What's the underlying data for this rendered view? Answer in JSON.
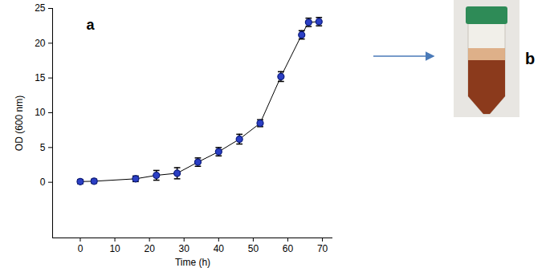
{
  "chart_data": {
    "type": "line",
    "x": [
      0,
      4,
      16,
      22,
      28,
      34,
      40,
      46,
      52,
      58,
      64,
      66,
      69
    ],
    "values": [
      0.1,
      0.15,
      0.5,
      1.0,
      1.3,
      2.9,
      4.4,
      6.2,
      8.5,
      15.2,
      21.2,
      23.0,
      23.1
    ],
    "errors": [
      0.3,
      0.3,
      0.4,
      0.7,
      0.8,
      0.6,
      0.6,
      0.7,
      0.5,
      0.7,
      0.6,
      0.6,
      0.6
    ],
    "color": "#2b3fc4",
    "marker": "circle",
    "xlabel": "Time (h)",
    "ylabel": "OD (600 nm)",
    "xlim": [
      -8,
      73
    ],
    "xticks": [
      0,
      10,
      20,
      30,
      40,
      50,
      60,
      70
    ],
    "ylim": [
      -8,
      25
    ],
    "yticks": [
      0,
      5,
      10,
      15,
      20,
      25
    ],
    "annotations": [
      "a",
      "b"
    ]
  }
}
